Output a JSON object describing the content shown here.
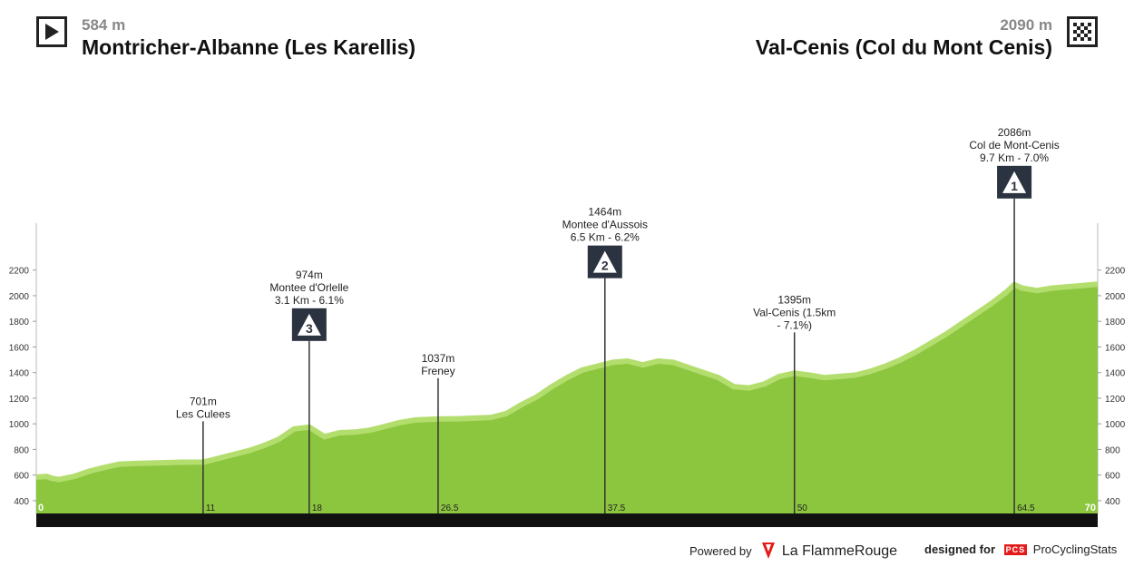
{
  "header": {
    "start": {
      "altitude": "584 m",
      "name": "Montricher-Albanne (Les Karellis)",
      "icon": "play-icon"
    },
    "finish": {
      "altitude": "2090 m",
      "name": "Val-Cenis (Col du Mont Cenis)",
      "icon": "checkered-flag-icon"
    }
  },
  "chart_data": {
    "type": "area",
    "title": "",
    "xlabel": "",
    "ylabel": "",
    "xlim": [
      0,
      70
    ],
    "ylim": [
      300,
      2600
    ],
    "y_ticks": [
      400,
      600,
      800,
      1000,
      1200,
      1400,
      1600,
      1800,
      2000,
      2200
    ],
    "x_start_label": "0",
    "x_end_label": "70",
    "series": [
      {
        "x": [
          0,
          0.7,
          1,
          1.5,
          2.5,
          3.5,
          4.5,
          5.5,
          6.5,
          8,
          9.5,
          11,
          12,
          13,
          14,
          15,
          16,
          17,
          18,
          19,
          20,
          21,
          22,
          23,
          24,
          25,
          26.5,
          28,
          30,
          31,
          32,
          33,
          34,
          35,
          36,
          37,
          37.5,
          38,
          39,
          40,
          41,
          42,
          43,
          44,
          45,
          46,
          47,
          48,
          49,
          50,
          51,
          52,
          53,
          54,
          55,
          56,
          57,
          58,
          59,
          60,
          61,
          62,
          63,
          64,
          64.5,
          65,
          66,
          67,
          68,
          69,
          70
        ],
        "y": [
          584,
          590,
          575,
          565,
          590,
          630,
          660,
          685,
          690,
          695,
          700,
          701,
          730,
          760,
          790,
          830,
          880,
          960,
          974,
          900,
          930,
          935,
          950,
          980,
          1010,
          1030,
          1037,
          1040,
          1050,
          1080,
          1150,
          1210,
          1290,
          1360,
          1420,
          1450,
          1464,
          1480,
          1490,
          1460,
          1490,
          1480,
          1440,
          1400,
          1360,
          1290,
          1280,
          1310,
          1370,
          1395,
          1380,
          1360,
          1370,
          1380,
          1410,
          1450,
          1500,
          1560,
          1630,
          1700,
          1780,
          1860,
          1940,
          2030,
          2086,
          2060,
          2040,
          2060,
          2070,
          2080,
          2090
        ]
      }
    ],
    "markers": [
      {
        "km": 11,
        "km_label": "11",
        "alt_label": "701m",
        "name_lines": [
          "Les Culees"
        ],
        "category": ""
      },
      {
        "km": 18,
        "km_label": "18",
        "alt_label": "974m",
        "name_lines": [
          "Montee d'Orlelle",
          "3.1 Km - 6.1%"
        ],
        "category": "3"
      },
      {
        "km": 26.5,
        "km_label": "26.5",
        "alt_label": "1037m",
        "name_lines": [
          "Freney"
        ],
        "category": ""
      },
      {
        "km": 37.5,
        "km_label": "37.5",
        "alt_label": "1464m",
        "name_lines": [
          "Montee d'Aussois",
          "6.5 Km - 6.2%"
        ],
        "category": "2"
      },
      {
        "km": 50,
        "km_label": "50",
        "alt_label": "1395m",
        "name_lines": [
          "Val-Cenis (1.5km",
          " - 7.1%)"
        ],
        "category": ""
      },
      {
        "km": 64.5,
        "km_label": "64.5",
        "alt_label": "2086m",
        "name_lines": [
          "Col de Mont-Cenis",
          "9.7 Km - 7.0%"
        ],
        "category": "1"
      }
    ],
    "colors": {
      "fill": "#8cc63f",
      "edge": "#b3de6e",
      "baseline": "#111111",
      "marker_box": "#2b3340"
    }
  },
  "footer": {
    "powered_by": "Powered by",
    "lfr_brand": "La FlammeRouge",
    "designed_for": "designed for",
    "pcs_mark": "PCS",
    "pcs_brand": "ProCyclingStats"
  }
}
